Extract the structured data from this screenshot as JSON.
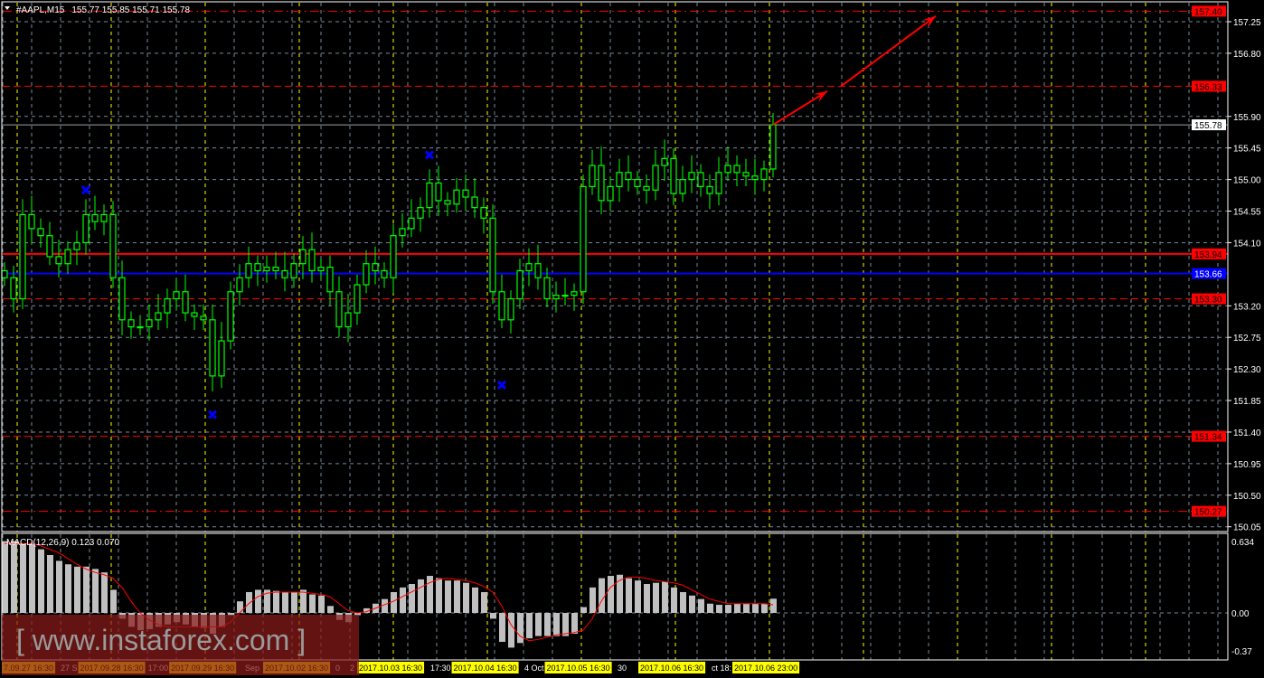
{
  "header": {
    "symbol": "#AAPL,M15",
    "ohlc": "155.77 155.85 155.71 155.78"
  },
  "colors": {
    "background": "#000000",
    "candle": "#00ff00",
    "grid": "#778899",
    "day_separator": "#ffff00",
    "level_red": "#ff0000",
    "level_blue": "#0000ff",
    "marker": "#0000ff",
    "histogram": "#c0c0c0",
    "signal": "#ff0000",
    "watermark_bg": "#8b1a1a"
  },
  "watermark": "[ www.instaforex.com ]",
  "chart_data": [
    {
      "type": "candlestick",
      "title": "#AAPL,M15",
      "timeframe": "M15",
      "ylim": [
        150.0,
        157.55
      ],
      "grid": true,
      "y_ticks": [
        "157.25",
        "156.80",
        "155.90",
        "155.45",
        "155.00",
        "154.55",
        "154.10",
        "153.20",
        "152.75",
        "152.30",
        "151.85",
        "151.40",
        "150.95",
        "150.50",
        "150.05"
      ],
      "closes": [
        153.6,
        153.3,
        154.5,
        154.3,
        154.2,
        153.9,
        153.8,
        154.0,
        154.1,
        154.5,
        154.4,
        154.5,
        153.6,
        153.0,
        152.9,
        152.9,
        153.0,
        153.1,
        153.3,
        153.4,
        153.1,
        153.05,
        153.0,
        152.2,
        152.7,
        153.4,
        153.6,
        153.8,
        153.7,
        153.75,
        153.7,
        153.6,
        153.8,
        154.0,
        153.7,
        153.75,
        153.4,
        152.9,
        153.1,
        153.5,
        153.8,
        153.7,
        153.6,
        154.2,
        154.3,
        154.45,
        154.6,
        154.95,
        154.7,
        154.65,
        154.85,
        154.75,
        154.6,
        154.45,
        153.4,
        153.0,
        153.3,
        153.7,
        153.8,
        153.6,
        153.3,
        153.35,
        153.35,
        153.4,
        154.9,
        155.2,
        154.7,
        154.9,
        155.1,
        155.0,
        154.9,
        154.85,
        155.2,
        155.3,
        154.8,
        155.0,
        155.1,
        154.9,
        154.8,
        155.1,
        155.2,
        155.1,
        155.05,
        155.0,
        155.15,
        155.78
      ],
      "current_price": "155.78",
      "levels": [
        {
          "price": 157.4,
          "label": "157.40",
          "color": "#ff0000",
          "style": "dashdot"
        },
        {
          "price": 156.33,
          "label": "156.33",
          "color": "#ff0000",
          "style": "dashed"
        },
        {
          "price": 155.78,
          "label": "155.78",
          "color": "#a0a0a0",
          "style": "solid"
        },
        {
          "price": 153.94,
          "label": "153.94",
          "color": "#ff0000",
          "style": "solid"
        },
        {
          "price": 153.66,
          "label": "153.66",
          "color": "#0000ff",
          "style": "solid"
        },
        {
          "price": 153.3,
          "label": "153.30",
          "color": "#ff0000",
          "style": "dashed"
        },
        {
          "price": 151.34,
          "label": "151.34",
          "color": "#ff0000",
          "style": "dashed"
        },
        {
          "price": 150.27,
          "label": "150.27",
          "color": "#ff0000",
          "style": "dashdot"
        }
      ],
      "markers": [
        {
          "candle": 9,
          "price": 154.85
        },
        {
          "candle": 23,
          "price": 151.65
        },
        {
          "candle": 47,
          "price": 155.35
        },
        {
          "candle": 55,
          "price": 152.07
        }
      ],
      "arrows": [
        {
          "from": [
            85,
            155.78
          ],
          "to": [
            91,
            156.26
          ]
        },
        {
          "to_note": "",
          "from": [
            92.5,
            156.33
          ],
          "to": [
            103,
            157.33
          ]
        }
      ],
      "x_labels": [
        {
          "text": "7.09.27 16:30",
          "candle": -0.2,
          "boxed": true
        },
        {
          "text": "27 S",
          "candle": 6.2,
          "boxed": false
        },
        {
          "text": "2017.09.28 16:30",
          "candle": 7.9,
          "boxed": true
        },
        {
          "text": "17:00",
          "candle": 15.7,
          "boxed": false
        },
        {
          "text": "2017.09.29 16:30",
          "candle": 18.3,
          "boxed": true
        },
        {
          "text": "Sep",
          "candle": 26.6,
          "boxed": false
        },
        {
          "text": "2017.10.02 16:30",
          "candle": 28.7,
          "boxed": true
        },
        {
          "text": "0",
          "candle": 36.6,
          "boxed": false
        },
        {
          "text": "2",
          "candle": 38.2,
          "boxed": false
        },
        {
          "text": "2017.10.03 16:30",
          "candle": 39.1,
          "boxed": true
        },
        {
          "text": "17:30",
          "candle": 47.1,
          "boxed": false
        },
        {
          "text": "2017.10.04 16:30",
          "candle": 49.4,
          "boxed": true
        },
        {
          "text": "4 Oct",
          "candle": 57.5,
          "boxed": false
        },
        {
          "text": "2017.10.05 16:30",
          "candle": 59.8,
          "boxed": true
        },
        {
          "text": "30",
          "candle": 67.8,
          "boxed": false
        },
        {
          "text": "2017.10.06 16:30",
          "candle": 70.2,
          "boxed": true
        },
        {
          "text": "ct 18:",
          "candle": 78.2,
          "boxed": false
        },
        {
          "text": "2017.10.06 23:00",
          "candle": 80.6,
          "boxed": true
        }
      ]
    },
    {
      "type": "bar",
      "title": "MACD(12,26,9) 0.123 0.070",
      "ylim": [
        -0.37,
        0.634
      ],
      "y_ticks": [
        "0.634",
        "0.00",
        "-0.37"
      ],
      "series": [
        {
          "name": "MACD",
          "kind": "histogram",
          "values": [
            0.62,
            0.62,
            0.6,
            0.6,
            0.55,
            0.5,
            0.45,
            0.42,
            0.4,
            0.4,
            0.38,
            0.35,
            0.2,
            -0.05,
            -0.12,
            -0.15,
            -0.14,
            -0.12,
            -0.1,
            -0.08,
            -0.1,
            -0.12,
            -0.13,
            -0.18,
            -0.12,
            -0.02,
            0.1,
            0.18,
            0.2,
            0.2,
            0.19,
            0.18,
            0.18,
            0.2,
            0.16,
            0.15,
            0.06,
            -0.06,
            -0.08,
            -0.02,
            0.04,
            0.08,
            0.12,
            0.18,
            0.22,
            0.25,
            0.29,
            0.32,
            0.3,
            0.28,
            0.28,
            0.26,
            0.22,
            0.18,
            -0.05,
            -0.25,
            -0.3,
            -0.26,
            -0.22,
            -0.2,
            -0.2,
            -0.2,
            -0.2,
            -0.18,
            0.05,
            0.22,
            0.3,
            0.32,
            0.33,
            0.3,
            0.28,
            0.25,
            0.26,
            0.27,
            0.22,
            0.18,
            0.15,
            0.12,
            0.08,
            0.07,
            0.07,
            0.08,
            0.08,
            0.08,
            0.08,
            0.123
          ]
        },
        {
          "name": "Signal",
          "kind": "line",
          "values": [
            0.6,
            0.6,
            0.6,
            0.6,
            0.58,
            0.55,
            0.52,
            0.47,
            0.42,
            0.38,
            0.35,
            0.33,
            0.3,
            0.22,
            0.1,
            0.0,
            -0.06,
            -0.1,
            -0.12,
            -0.12,
            -0.12,
            -0.12,
            -0.12,
            -0.12,
            -0.12,
            -0.08,
            0.0,
            0.08,
            0.14,
            0.17,
            0.18,
            0.18,
            0.18,
            0.18,
            0.17,
            0.16,
            0.14,
            0.08,
            0.02,
            0.0,
            0.01,
            0.04,
            0.07,
            0.1,
            0.14,
            0.18,
            0.22,
            0.26,
            0.29,
            0.3,
            0.29,
            0.28,
            0.26,
            0.23,
            0.18,
            0.06,
            -0.1,
            -0.2,
            -0.24,
            -0.23,
            -0.21,
            -0.19,
            -0.18,
            -0.17,
            -0.15,
            -0.05,
            0.1,
            0.22,
            0.28,
            0.31,
            0.31,
            0.3,
            0.28,
            0.27,
            0.26,
            0.24,
            0.2,
            0.16,
            0.12,
            0.1,
            0.08,
            0.08,
            0.08,
            0.08,
            0.08,
            0.07
          ]
        }
      ]
    }
  ]
}
